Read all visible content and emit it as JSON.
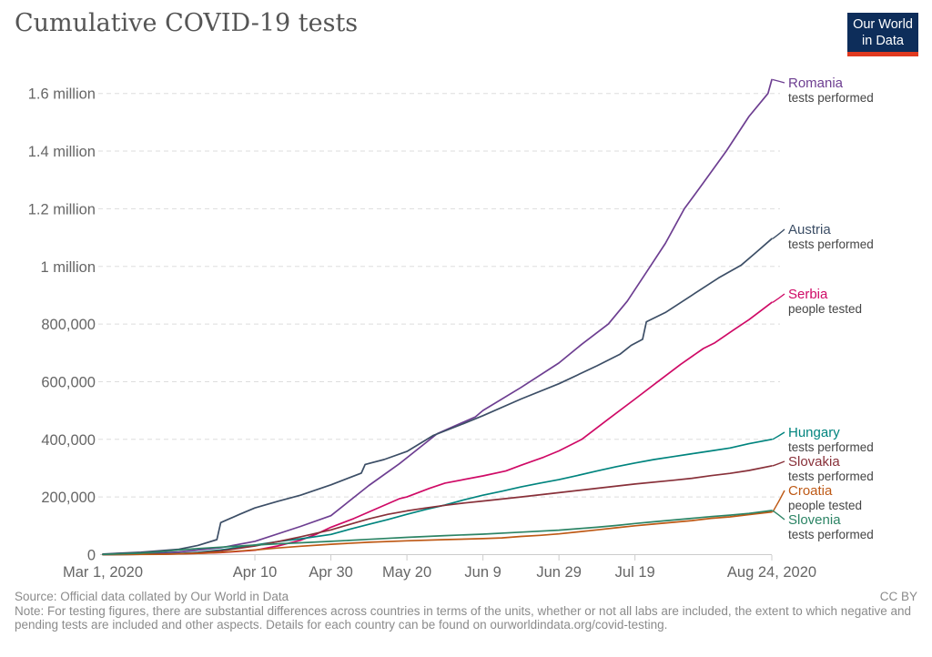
{
  "header": {
    "title": "Cumulative COVID-19 tests",
    "logo": {
      "line1": "Our World",
      "line2": "in Data"
    }
  },
  "colors": {
    "logo_background": "#0d2d5a",
    "logo_underline": "#e0391f",
    "gridline": "#dddddd",
    "axis_line": "#cccccc",
    "tick_text": "#666666",
    "title_text": "#555555",
    "footer_text": "#8b8b8b",
    "series_unit_text": "#454545"
  },
  "footer": {
    "source": "Source: Official data collated by Our World in Data",
    "license": "CC BY",
    "note": "Note: For testing figures, there are substantial differences across countries in terms of the units, whether or not all labs are included, the extent to which negative and pending tests are included and other aspects. Details for each country can be found on ourworldindata.org/covid-testing."
  },
  "chart_data": {
    "type": "line",
    "title": "Cumulative COVID-19 tests",
    "grid": "horizontal-dashed",
    "legend_position": "right-of-line-ends",
    "x_axis": {
      "unit": "days since Mar 1, 2020",
      "range": [
        0,
        176
      ],
      "ticks": [
        {
          "day": 0,
          "label": "Mar 1, 2020"
        },
        {
          "day": 40,
          "label": "Apr 10"
        },
        {
          "day": 60,
          "label": "Apr 30"
        },
        {
          "day": 80,
          "label": "May 20"
        },
        {
          "day": 100,
          "label": "Jun 9"
        },
        {
          "day": 120,
          "label": "Jun 29"
        },
        {
          "day": 140,
          "label": "Jul 19"
        },
        {
          "day": 176,
          "label": "Aug 24, 2020"
        }
      ]
    },
    "y_axis": {
      "range": [
        0,
        1660000
      ],
      "ticks": [
        {
          "value": 0,
          "label": "0"
        },
        {
          "value": 200000,
          "label": "200,000"
        },
        {
          "value": 400000,
          "label": "400,000"
        },
        {
          "value": 600000,
          "label": "600,000"
        },
        {
          "value": 800000,
          "label": "800,000"
        },
        {
          "value": 1000000,
          "label": "1 million"
        },
        {
          "value": 1200000,
          "label": "1.2 million"
        },
        {
          "value": 1400000,
          "label": "1.4 million"
        },
        {
          "value": 1600000,
          "label": "1.6 million"
        }
      ]
    },
    "series": [
      {
        "name": "Romania",
        "unit": "tests performed",
        "color": "#6D3E91",
        "points": [
          [
            0,
            200
          ],
          [
            10,
            2500
          ],
          [
            20,
            9000
          ],
          [
            31,
            24000
          ],
          [
            40,
            46000
          ],
          [
            52,
            98000
          ],
          [
            60,
            135000
          ],
          [
            70,
            240000
          ],
          [
            78,
            315000
          ],
          [
            88,
            420000
          ],
          [
            98,
            478000
          ],
          [
            100,
            500000
          ],
          [
            110,
            580000
          ],
          [
            120,
            665000
          ],
          [
            126,
            730000
          ],
          [
            133,
            800000
          ],
          [
            138,
            880000
          ],
          [
            144,
            1000000
          ],
          [
            148,
            1080000
          ],
          [
            153,
            1200000
          ],
          [
            158,
            1290000
          ],
          [
            164,
            1400000
          ],
          [
            170,
            1520000
          ],
          [
            175,
            1600000
          ],
          [
            176,
            1648000
          ]
        ]
      },
      {
        "name": "Austria",
        "unit": "tests performed",
        "color": "#3C4E66",
        "points": [
          [
            0,
            2100
          ],
          [
            10,
            8500
          ],
          [
            20,
            18500
          ],
          [
            25,
            32000
          ],
          [
            30,
            52000
          ],
          [
            31,
            111000
          ],
          [
            36,
            140000
          ],
          [
            40,
            162000
          ],
          [
            46,
            185000
          ],
          [
            52,
            206000
          ],
          [
            60,
            242000
          ],
          [
            68,
            283000
          ],
          [
            69,
            313000
          ],
          [
            74,
            330000
          ],
          [
            80,
            358000
          ],
          [
            87,
            414000
          ],
          [
            94,
            450000
          ],
          [
            100,
            482000
          ],
          [
            110,
            540000
          ],
          [
            120,
            593000
          ],
          [
            130,
            655000
          ],
          [
            136,
            695000
          ],
          [
            139,
            726000
          ],
          [
            142,
            747000
          ],
          [
            143,
            808000
          ],
          [
            148,
            840000
          ],
          [
            155,
            900000
          ],
          [
            162,
            960000
          ],
          [
            168,
            1005000
          ],
          [
            172,
            1050000
          ],
          [
            176,
            1096000
          ]
        ]
      },
      {
        "name": "Serbia",
        "unit": "people tested",
        "color": "#CF0A66",
        "points": [
          [
            0,
            300
          ],
          [
            15,
            1500
          ],
          [
            25,
            4000
          ],
          [
            31,
            7000
          ],
          [
            40,
            15000
          ],
          [
            46,
            30000
          ],
          [
            52,
            50000
          ],
          [
            56,
            70000
          ],
          [
            60,
            95000
          ],
          [
            66,
            125000
          ],
          [
            70,
            148000
          ],
          [
            78,
            194000
          ],
          [
            80,
            200000
          ],
          [
            86,
            230000
          ],
          [
            90,
            248000
          ],
          [
            100,
            273000
          ],
          [
            106,
            290000
          ],
          [
            110,
            310000
          ],
          [
            116,
            338000
          ],
          [
            120,
            360000
          ],
          [
            126,
            400000
          ],
          [
            133,
            470000
          ],
          [
            140,
            540000
          ],
          [
            146,
            600000
          ],
          [
            152,
            660000
          ],
          [
            158,
            715000
          ],
          [
            161,
            735000
          ],
          [
            166,
            780000
          ],
          [
            170,
            815000
          ],
          [
            173,
            845000
          ],
          [
            176,
            875000
          ]
        ]
      },
      {
        "name": "Hungary",
        "unit": "tests performed",
        "color": "#00847E",
        "points": [
          [
            0,
            150
          ],
          [
            10,
            1200
          ],
          [
            20,
            3500
          ],
          [
            25,
            8000
          ],
          [
            31,
            16000
          ],
          [
            40,
            33000
          ],
          [
            46,
            45000
          ],
          [
            52,
            55000
          ],
          [
            60,
            70000
          ],
          [
            65,
            88000
          ],
          [
            70,
            105000
          ],
          [
            75,
            122000
          ],
          [
            80,
            140000
          ],
          [
            85,
            157000
          ],
          [
            90,
            172000
          ],
          [
            95,
            190000
          ],
          [
            100,
            206000
          ],
          [
            105,
            220000
          ],
          [
            110,
            235000
          ],
          [
            115,
            248000
          ],
          [
            120,
            260000
          ],
          [
            125,
            275000
          ],
          [
            130,
            290000
          ],
          [
            135,
            305000
          ],
          [
            140,
            318000
          ],
          [
            145,
            330000
          ],
          [
            150,
            340000
          ],
          [
            155,
            350000
          ],
          [
            160,
            360000
          ],
          [
            165,
            370000
          ],
          [
            170,
            385000
          ],
          [
            176,
            400000
          ]
        ]
      },
      {
        "name": "Slovakia",
        "unit": "tests performed",
        "color": "#883039",
        "points": [
          [
            0,
            100
          ],
          [
            10,
            1000
          ],
          [
            20,
            2800
          ],
          [
            25,
            6000
          ],
          [
            31,
            13000
          ],
          [
            40,
            30000
          ],
          [
            46,
            45000
          ],
          [
            52,
            62000
          ],
          [
            60,
            86000
          ],
          [
            65,
            105000
          ],
          [
            70,
            124000
          ],
          [
            75,
            140000
          ],
          [
            80,
            152000
          ],
          [
            85,
            162000
          ],
          [
            90,
            171000
          ],
          [
            95,
            179000
          ],
          [
            100,
            186000
          ],
          [
            110,
            200000
          ],
          [
            120,
            215000
          ],
          [
            130,
            230000
          ],
          [
            140,
            245000
          ],
          [
            150,
            258000
          ],
          [
            155,
            265000
          ],
          [
            160,
            274000
          ],
          [
            165,
            282000
          ],
          [
            170,
            292000
          ],
          [
            176,
            308000
          ]
        ]
      },
      {
        "name": "Croatia",
        "unit": "people tested",
        "color": "#BE5915",
        "points": [
          [
            0,
            200
          ],
          [
            15,
            1000
          ],
          [
            25,
            4500
          ],
          [
            31,
            8000
          ],
          [
            40,
            16000
          ],
          [
            46,
            23000
          ],
          [
            52,
            29000
          ],
          [
            60,
            36000
          ],
          [
            70,
            43000
          ],
          [
            80,
            48000
          ],
          [
            90,
            52000
          ],
          [
            100,
            55500
          ],
          [
            105,
            58000
          ],
          [
            110,
            63000
          ],
          [
            115,
            67000
          ],
          [
            120,
            72000
          ],
          [
            125,
            79000
          ],
          [
            130,
            86000
          ],
          [
            135,
            93000
          ],
          [
            140,
            100000
          ],
          [
            145,
            106000
          ],
          [
            150,
            112000
          ],
          [
            155,
            118000
          ],
          [
            160,
            126000
          ],
          [
            165,
            131000
          ],
          [
            170,
            139000
          ],
          [
            176,
            148000
          ]
        ]
      },
      {
        "name": "Slovenia",
        "unit": "tests performed",
        "color": "#2C8465",
        "points": [
          [
            0,
            500
          ],
          [
            10,
            5000
          ],
          [
            15,
            10000
          ],
          [
            20,
            16000
          ],
          [
            25,
            21000
          ],
          [
            31,
            26000
          ],
          [
            40,
            33000
          ],
          [
            46,
            37500
          ],
          [
            52,
            41000
          ],
          [
            60,
            46000
          ],
          [
            70,
            53000
          ],
          [
            80,
            60000
          ],
          [
            90,
            66000
          ],
          [
            100,
            71000
          ],
          [
            110,
            78000
          ],
          [
            120,
            85000
          ],
          [
            125,
            90000
          ],
          [
            130,
            95000
          ],
          [
            135,
            101000
          ],
          [
            140,
            108000
          ],
          [
            145,
            114000
          ],
          [
            150,
            120000
          ],
          [
            155,
            126000
          ],
          [
            160,
            132000
          ],
          [
            165,
            137000
          ],
          [
            170,
            143000
          ],
          [
            176,
            153000
          ]
        ]
      }
    ]
  }
}
